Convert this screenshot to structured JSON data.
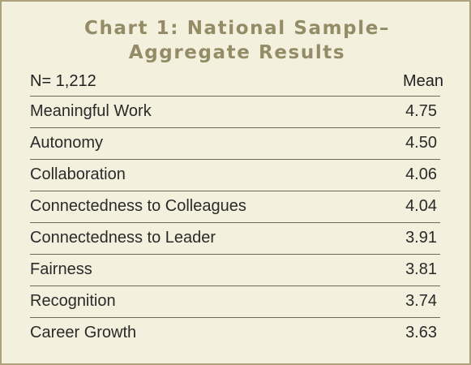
{
  "title_line1": "Chart 1: National Sample–",
  "title_line2": "Aggregate Results",
  "header": {
    "n_label": "N= 1,212",
    "mean_label": "Mean"
  },
  "chart_data": {
    "type": "table",
    "title": "Chart 1: National Sample–Aggregate Results",
    "columns": [
      "N= 1,212",
      "Mean"
    ],
    "rows": [
      {
        "label": "Meaningful Work",
        "value": "4.75"
      },
      {
        "label": "Autonomy",
        "value": "4.50"
      },
      {
        "label": "Collaboration",
        "value": "4.06"
      },
      {
        "label": "Connectedness to Colleagues",
        "value": "4.04"
      },
      {
        "label": "Connectedness to Leader",
        "value": "3.91"
      },
      {
        "label": "Fairness",
        "value": "3.81"
      },
      {
        "label": "Recognition",
        "value": "3.74"
      },
      {
        "label": "Career Growth",
        "value": "3.63"
      }
    ]
  }
}
